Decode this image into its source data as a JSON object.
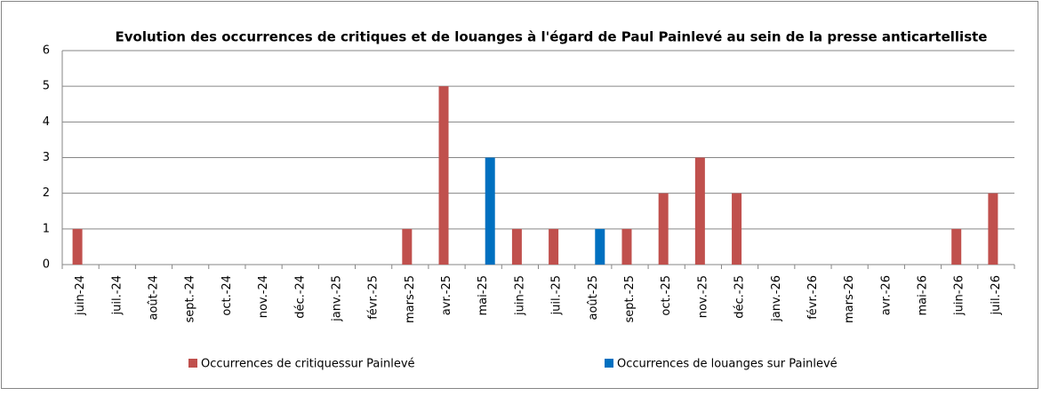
{
  "chart_data": {
    "type": "bar",
    "title": "Evolution des occurrences de critiques et de louanges à l'égard de Paul Painlevé au sein de la presse anticartelliste",
    "categories": [
      "juin-24",
      "juil.-24",
      "août-24",
      "sept.-24",
      "oct.-24",
      "nov.-24",
      "déc.-24",
      "janv.-25",
      "févr.-25",
      "mars-25",
      "avr.-25",
      "mai-25",
      "juin-25",
      "juil.-25",
      "août-25",
      "sept.-25",
      "oct.-25",
      "nov.-25",
      "déc.-25",
      "janv.-26",
      "févr.-26",
      "mars-26",
      "avr.-26",
      "mai-26",
      "juin-26",
      "juil.-26"
    ],
    "series": [
      {
        "name": "Occurrences de critiquessur Painlevé",
        "color": "#c0504d",
        "values": [
          1,
          0,
          0,
          0,
          0,
          0,
          0,
          0,
          0,
          1,
          5,
          0,
          1,
          1,
          0,
          1,
          2,
          3,
          2,
          0,
          0,
          0,
          0,
          0,
          1,
          2
        ]
      },
      {
        "name": "Occurrences de louanges sur Painlevé",
        "color": "#0070c0",
        "values": [
          0,
          0,
          0,
          0,
          0,
          0,
          0,
          0,
          0,
          0,
          0,
          3,
          0,
          0,
          1,
          0,
          0,
          0,
          0,
          0,
          0,
          0,
          0,
          0,
          0,
          0
        ]
      }
    ],
    "ylim": [
      0,
      6
    ],
    "yticks": [
      0,
      1,
      2,
      3,
      4,
      5,
      6
    ],
    "grid": true,
    "legend": "bottom"
  }
}
